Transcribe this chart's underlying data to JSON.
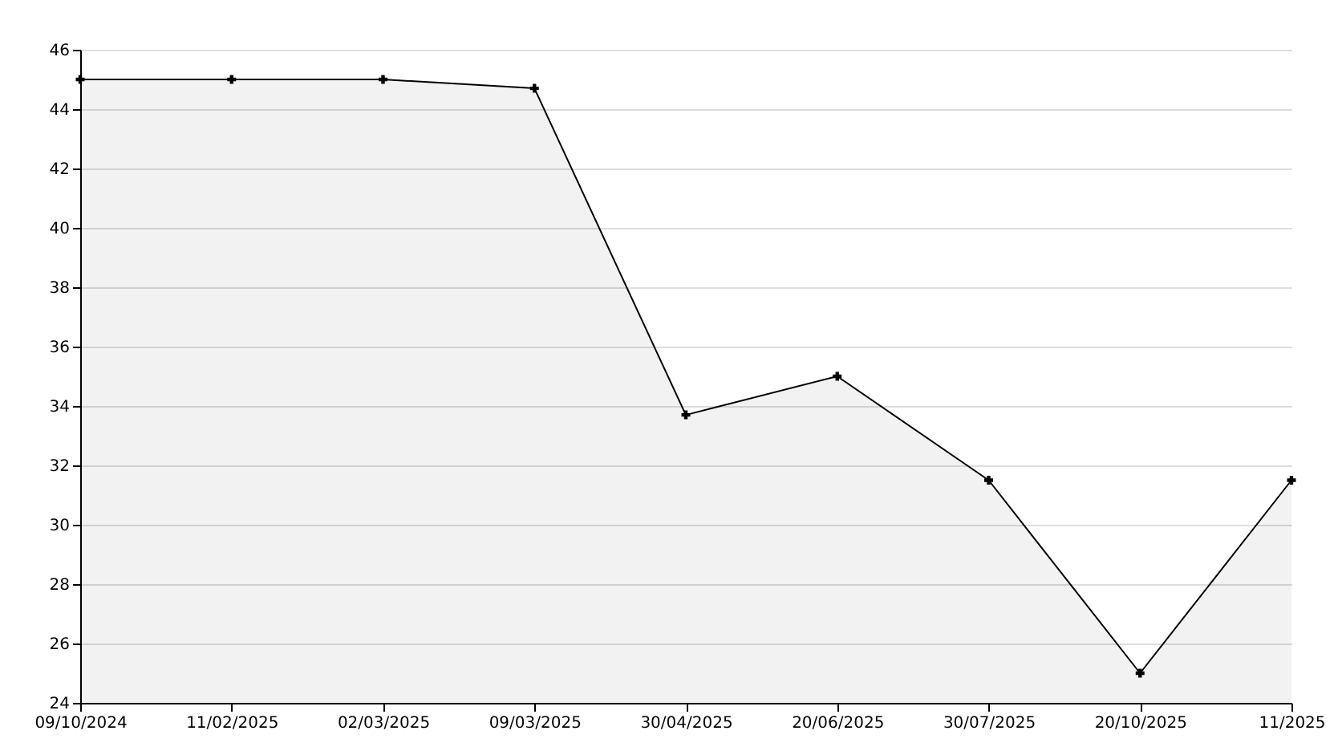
{
  "chart_data": {
    "type": "area",
    "categories": [
      "09/10/2024",
      "11/02/2025",
      "02/03/2025",
      "09/03/2025",
      "30/04/2025",
      "20/06/2025",
      "30/07/2025",
      "20/10/2025",
      "11/2025"
    ],
    "series": [
      {
        "color": "#000000",
        "values": [
          45,
          45,
          45,
          44.7,
          33.7,
          35,
          31.5,
          25,
          31.5
        ]
      }
    ],
    "ylim": [
      24,
      46
    ],
    "yticks": [
      24,
      26,
      28,
      30,
      32,
      34,
      36,
      38,
      40,
      42,
      44,
      46
    ],
    "grid": "y",
    "marker": "cross"
  }
}
